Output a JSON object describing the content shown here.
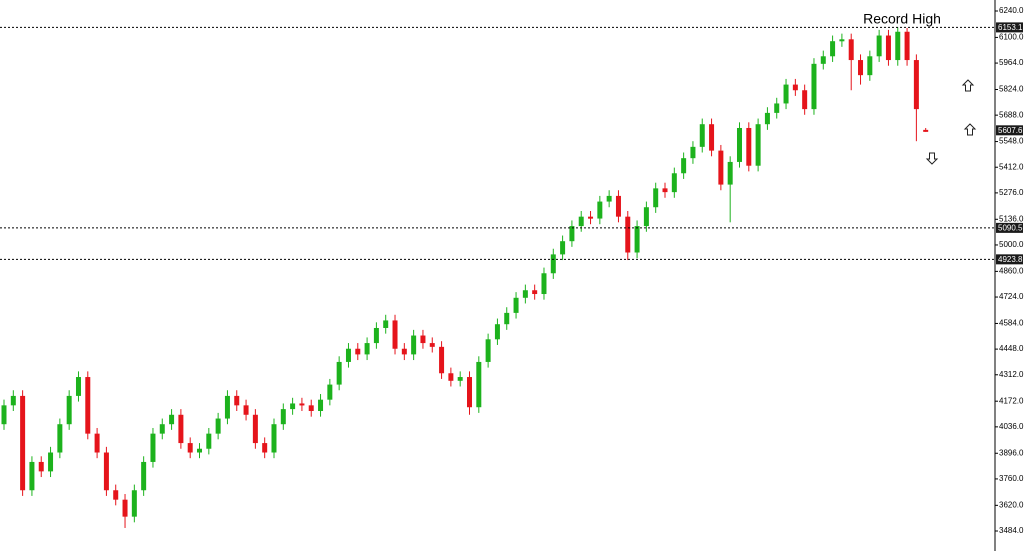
{
  "chart_data": {
    "type": "candlestick",
    "annotation": "Record High",
    "ylim": [
      3484,
      6240
    ],
    "yticks": [
      {
        "value": 6240,
        "label": "6240.0"
      },
      {
        "value": 6100,
        "label": "6100.0"
      },
      {
        "value": 5964,
        "label": "5964.0"
      },
      {
        "value": 5824,
        "label": "5824.0"
      },
      {
        "value": 5688,
        "label": "5688.0"
      },
      {
        "value": 5548,
        "label": "5548.0"
      },
      {
        "value": 5412,
        "label": "5412.0"
      },
      {
        "value": 5276,
        "label": "5276.0"
      },
      {
        "value": 5136,
        "label": "5136.0"
      },
      {
        "value": 5000,
        "label": "5000.0"
      },
      {
        "value": 4860,
        "label": "4860.0"
      },
      {
        "value": 4724,
        "label": "4724.0"
      },
      {
        "value": 4584,
        "label": "4584.0"
      },
      {
        "value": 4448,
        "label": "4448.0"
      },
      {
        "value": 4312,
        "label": "4312.0"
      },
      {
        "value": 4172,
        "label": "4172.0"
      },
      {
        "value": 4036,
        "label": "4036.0"
      },
      {
        "value": 3896,
        "label": "3896.0"
      },
      {
        "value": 3760,
        "label": "3760.0"
      },
      {
        "value": 3620,
        "label": "3620.0"
      },
      {
        "value": 3484,
        "label": "3484.0"
      }
    ],
    "levels": [
      6153.1,
      5090.5,
      4923.8
    ],
    "last_price": 5607.6,
    "up_color": "#1db21d",
    "down_color": "#e5141b",
    "open": [
      4050,
      4150,
      4200,
      3700,
      3850,
      3800,
      3900,
      4050,
      4200,
      4300,
      4000,
      3900,
      3700,
      3650,
      3560,
      3700,
      3850,
      4000,
      4050,
      4100,
      3950,
      3900,
      3920,
      4000,
      4080,
      4200,
      4150,
      4100,
      3950,
      3900,
      4050,
      4130,
      4160,
      4150,
      4120,
      4180,
      4260,
      4380,
      4450,
      4420,
      4480,
      4560,
      4600,
      4450,
      4420,
      4520,
      4480,
      4460,
      4320,
      4280,
      4300,
      4140,
      4380,
      4500,
      4580,
      4640,
      4720,
      4760,
      4740,
      4850,
      4950,
      5020,
      5100,
      5150,
      5140,
      5230,
      5260,
      5150,
      4960,
      5100,
      5200,
      5300,
      5280,
      5380,
      5460,
      5520,
      5640,
      5500,
      5320,
      5440,
      5620,
      5420,
      5640,
      5700,
      5750,
      5850,
      5820,
      5720,
      5960,
      6000,
      6080,
      6090,
      5980,
      5900,
      6000,
      6110,
      5980,
      6130,
      5980,
      5610
    ],
    "high": [
      4180,
      4230,
      4230,
      3880,
      3880,
      3930,
      4080,
      4230,
      4330,
      4330,
      4030,
      3930,
      3730,
      3680,
      3730,
      3880,
      4030,
      4080,
      4130,
      4130,
      3980,
      3950,
      4030,
      4110,
      4230,
      4230,
      4180,
      4130,
      3980,
      4080,
      4160,
      4190,
      4190,
      4180,
      4210,
      4290,
      4410,
      4480,
      4480,
      4510,
      4590,
      4630,
      4630,
      4480,
      4550,
      4550,
      4510,
      4490,
      4350,
      4330,
      4330,
      4410,
      4530,
      4610,
      4670,
      4750,
      4790,
      4790,
      4880,
      4980,
      5050,
      5130,
      5180,
      5180,
      5260,
      5290,
      5290,
      5180,
      5130,
      5230,
      5330,
      5330,
      5410,
      5490,
      5550,
      5670,
      5670,
      5530,
      5470,
      5650,
      5650,
      5670,
      5730,
      5780,
      5880,
      5880,
      5850,
      5990,
      6030,
      6110,
      6120,
      6120,
      6010,
      6030,
      6140,
      6140,
      6153,
      6150,
      6010,
      5620
    ],
    "low": [
      4020,
      4120,
      3670,
      3670,
      3770,
      3770,
      3870,
      4020,
      4170,
      3970,
      3870,
      3670,
      3620,
      3500,
      3530,
      3670,
      3820,
      3970,
      4020,
      3920,
      3870,
      3870,
      3890,
      3970,
      4050,
      4120,
      4070,
      3920,
      3870,
      3870,
      4020,
      4100,
      4120,
      4090,
      4090,
      4150,
      4230,
      4350,
      4390,
      4390,
      4450,
      4530,
      4420,
      4390,
      4390,
      4450,
      4430,
      4290,
      4250,
      4250,
      4100,
      4110,
      4350,
      4470,
      4550,
      4610,
      4690,
      4710,
      4710,
      4820,
      4920,
      4990,
      5070,
      5110,
      5110,
      5200,
      5120,
      4920,
      4930,
      5070,
      5170,
      5250,
      5250,
      5350,
      5430,
      5490,
      5470,
      5290,
      5120,
      5410,
      5390,
      5390,
      5610,
      5670,
      5720,
      5790,
      5690,
      5690,
      5930,
      5970,
      6050,
      5820,
      5850,
      5870,
      5970,
      5950,
      5950,
      5950,
      5550,
      5600
    ],
    "close": [
      4150,
      4200,
      3700,
      3850,
      3800,
      3900,
      4050,
      4200,
      4300,
      4000,
      3900,
      3700,
      3650,
      3560,
      3700,
      3850,
      4000,
      4050,
      4100,
      3950,
      3900,
      3920,
      4000,
      4080,
      4200,
      4150,
      4100,
      3950,
      3900,
      4050,
      4130,
      4160,
      4150,
      4120,
      4180,
      4260,
      4380,
      4450,
      4420,
      4480,
      4560,
      4600,
      4450,
      4420,
      4520,
      4480,
      4460,
      4320,
      4280,
      4300,
      4140,
      4380,
      4500,
      4580,
      4640,
      4720,
      4760,
      4740,
      4850,
      4950,
      5020,
      5100,
      5150,
      5140,
      5230,
      5260,
      5150,
      4960,
      5100,
      5200,
      5300,
      5280,
      5380,
      5460,
      5520,
      5640,
      5500,
      5320,
      5440,
      5620,
      5420,
      5640,
      5700,
      5750,
      5850,
      5820,
      5720,
      5960,
      6000,
      6080,
      6090,
      5980,
      5900,
      6000,
      6110,
      5980,
      6130,
      5980,
      5720,
      5607.6
    ]
  }
}
